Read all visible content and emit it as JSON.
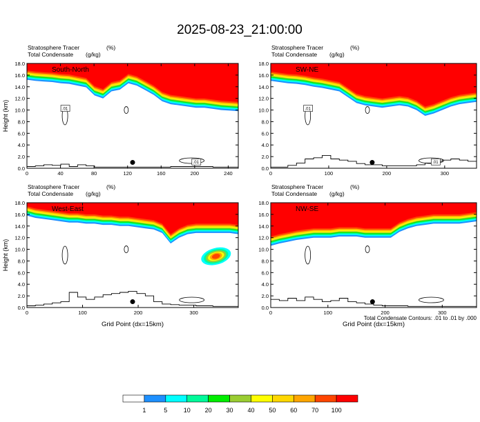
{
  "page": {
    "title": "2025-08-23_21:00:00"
  },
  "panels": [
    {
      "name": "South-North",
      "label_line1": "Stratosphere Tracer",
      "label_unit1": "(%)",
      "label_line2": "Total Condensate",
      "label_unit2": "(g/kg)",
      "ylabel": "Height (km)",
      "xlabel": "",
      "xlim": [
        0,
        252
      ],
      "xticks": [
        0,
        40,
        80,
        120,
        160,
        200,
        240
      ],
      "ylim": [
        0,
        18
      ],
      "yticks": [
        "0.0",
        "2.0",
        "4.0",
        "6.0",
        "8.0",
        "10.0",
        "12.0",
        "14.0",
        "16.0",
        "18.0"
      ],
      "contour_labels": [
        ".01",
        ".01"
      ],
      "tracer_base_km": [
        15.2,
        15.0,
        14.9,
        14.8,
        14.6,
        14.5,
        14.2,
        13.9,
        12.5,
        12.0,
        13.2,
        13.5,
        14.6,
        14.2,
        13.4,
        12.6,
        11.5,
        11.0,
        10.8,
        10.6,
        10.4,
        10.4,
        10.2,
        10.0,
        9.9,
        9.8
      ],
      "terrain_km": [
        0.3,
        0.4,
        0.6,
        0.5,
        0.7,
        0.3,
        0.6,
        0.4,
        0.2,
        0.2,
        0.2,
        0.2,
        0.2,
        0.2,
        0.2,
        0.2,
        0.2,
        0.3,
        0.3,
        0.3,
        0.3,
        0.3,
        0.2,
        0.2,
        0.2,
        0.2
      ],
      "marker_x": 126
    },
    {
      "name": "SW-NE",
      "label_line1": "Stratosphere Tracer",
      "label_unit1": "(%)",
      "label_line2": "Total Condensate",
      "label_unit2": "(g/kg)",
      "ylabel": "",
      "xlabel": "",
      "xlim": [
        0,
        355
      ],
      "xticks": [
        0,
        100,
        200,
        300
      ],
      "ylim": [
        0,
        18
      ],
      "yticks": [
        "0.0",
        "2.0",
        "4.0",
        "6.0",
        "8.0",
        "10.0",
        "12.0",
        "14.0",
        "16.0",
        "18.0"
      ],
      "contour_labels": [
        ".01",
        ".01"
      ],
      "tracer_base_km": [
        15.0,
        14.8,
        14.6,
        14.5,
        14.3,
        14.0,
        13.8,
        13.5,
        13.2,
        12.2,
        11.2,
        10.8,
        10.6,
        10.4,
        10.6,
        10.8,
        10.6,
        10.0,
        9.0,
        9.4,
        10.0,
        10.6,
        11.0,
        11.2,
        11.4
      ],
      "terrain_km": [
        0.2,
        0.2,
        0.5,
        0.9,
        1.6,
        1.8,
        2.2,
        1.6,
        1.4,
        1.2,
        0.8,
        0.6,
        0.6,
        0.4,
        0.4,
        0.4,
        0.4,
        0.6,
        0.9,
        1.2,
        1.4,
        1.6,
        1.4,
        1.2,
        1.0
      ],
      "marker_x": 175
    },
    {
      "name": "West-East",
      "label_line1": "Stratosphere Tracer",
      "label_unit1": "(%)",
      "label_line2": "Total Condensate",
      "label_unit2": "(g/kg)",
      "ylabel": "Height (km)",
      "xlabel": "Grid Point (dx=15km)",
      "xlim": [
        0,
        380
      ],
      "xticks": [
        0,
        100,
        200,
        300
      ],
      "ylim": [
        0,
        18
      ],
      "yticks": [
        "0.0",
        "2.0",
        "4.0",
        "6.0",
        "8.0",
        "10.0",
        "12.0",
        "14.0",
        "16.0",
        "18.0"
      ],
      "contour_labels": [],
      "tracer_base_km": [
        15.8,
        15.4,
        15.2,
        15.0,
        14.8,
        14.6,
        14.6,
        14.4,
        14.4,
        14.2,
        14.2,
        14.0,
        14.0,
        13.8,
        13.6,
        13.4,
        12.8,
        11.0,
        12.0,
        12.6,
        12.8,
        12.8,
        12.8,
        12.8,
        12.8,
        12.6
      ],
      "terrain_km": [
        0.3,
        0.4,
        0.6,
        0.8,
        1.0,
        2.6,
        1.8,
        1.4,
        1.8,
        2.2,
        2.4,
        2.6,
        2.8,
        2.4,
        2.0,
        1.0,
        0.6,
        0.5,
        0.4,
        0.4,
        0.3,
        0.3,
        0.2,
        0.2,
        0.2,
        0.2
      ],
      "marker_x": 190
    },
    {
      "name": "NW-SE",
      "label_line1": "Stratosphere Tracer",
      "label_unit1": "(%)",
      "label_line2": "Total Condensate",
      "label_unit2": "(g/kg)",
      "ylabel": "",
      "xlabel": "Grid Point (dx=15km)",
      "xlim": [
        0,
        360
      ],
      "xticks": [
        0,
        100,
        200,
        300
      ],
      "ylim": [
        0,
        18
      ],
      "yticks": [
        "0.0",
        "2.0",
        "4.0",
        "6.0",
        "8.0",
        "10.0",
        "12.0",
        "14.0",
        "16.0",
        "18.0"
      ],
      "contour_labels": [],
      "tracer_base_km": [
        10.6,
        11.0,
        11.3,
        11.6,
        11.8,
        12.0,
        12.0,
        12.0,
        12.2,
        12.2,
        12.2,
        12.0,
        12.0,
        12.0,
        12.0,
        13.0,
        13.6,
        14.0,
        14.2,
        14.4,
        14.4,
        14.4,
        14.4,
        14.6,
        14.8
      ],
      "terrain_km": [
        1.4,
        1.2,
        1.6,
        1.2,
        1.8,
        1.4,
        1.0,
        1.2,
        1.6,
        1.0,
        0.8,
        0.6,
        0.4,
        0.3,
        0.3,
        0.3,
        0.2,
        0.2,
        0.2,
        0.2,
        0.2,
        0.2,
        0.2,
        0.2,
        0.2
      ],
      "marker_x": 178
    }
  ],
  "footnote": "Total Condensate Contours: .01 to .01 by .000",
  "colorbar": {
    "labels": [
      "1",
      "5",
      "10",
      "20",
      "30",
      "40",
      "50",
      "60",
      "70",
      "100"
    ],
    "colors": [
      "#ffffff",
      "#1e90ff",
      "#00ffff",
      "#00fa9a",
      "#00ee00",
      "#9acd32",
      "#ffff00",
      "#ffd700",
      "#ffa500",
      "#ff4500",
      "#ff0000"
    ]
  },
  "chart_data": [
    {
      "type": "heatmap",
      "title": "South-North",
      "xlabel": "",
      "ylabel": "Height (km)",
      "xlim": [
        0,
        252
      ],
      "ylim": [
        0,
        18
      ],
      "series": [
        {
          "name": "Stratosphere Tracer",
          "values": [
            15.2,
            15.0,
            14.9,
            14.8,
            14.6,
            14.5,
            14.2,
            13.9,
            12.5,
            12.0,
            13.2,
            13.5,
            14.6,
            14.2,
            13.4,
            12.6,
            11.5,
            11.0,
            10.8,
            10.6,
            10.4,
            10.4,
            10.2,
            10.0,
            9.9,
            9.8
          ]
        },
        {
          "name": "Total Condensate",
          "values": [
            0.3,
            0.4,
            0.6,
            0.5,
            0.7,
            0.3,
            0.6,
            0.4,
            0.2,
            0.2,
            0.2,
            0.2,
            0.2,
            0.2,
            0.2,
            0.2,
            0.2,
            0.3,
            0.3,
            0.3,
            0.3,
            0.3,
            0.2,
            0.2,
            0.2,
            0.2
          ]
        }
      ]
    },
    {
      "type": "heatmap",
      "title": "SW-NE",
      "xlabel": "",
      "ylabel": "",
      "xlim": [
        0,
        355
      ],
      "ylim": [
        0,
        18
      ],
      "series": [
        {
          "name": "Stratosphere Tracer",
          "values": [
            15.0,
            14.8,
            14.6,
            14.5,
            14.3,
            14.0,
            13.8,
            13.5,
            13.2,
            12.2,
            11.2,
            10.8,
            10.6,
            10.4,
            10.6,
            10.8,
            10.6,
            10.0,
            9.0,
            9.4,
            10.0,
            10.6,
            11.0,
            11.2,
            11.4
          ]
        },
        {
          "name": "Total Condensate",
          "values": [
            0.2,
            0.2,
            0.5,
            0.9,
            1.6,
            1.8,
            2.2,
            1.6,
            1.4,
            1.2,
            0.8,
            0.6,
            0.6,
            0.4,
            0.4,
            0.4,
            0.4,
            0.6,
            0.9,
            1.2,
            1.4,
            1.6,
            1.4,
            1.2,
            1.0
          ]
        }
      ]
    },
    {
      "type": "heatmap",
      "title": "West-East",
      "xlabel": "Grid Point (dx=15km)",
      "ylabel": "Height (km)",
      "xlim": [
        0,
        380
      ],
      "ylim": [
        0,
        18
      ],
      "series": [
        {
          "name": "Stratosphere Tracer",
          "values": [
            15.8,
            15.4,
            15.2,
            15.0,
            14.8,
            14.6,
            14.6,
            14.4,
            14.4,
            14.2,
            14.2,
            14.0,
            14.0,
            13.8,
            13.6,
            13.4,
            12.8,
            11.0,
            12.0,
            12.6,
            12.8,
            12.8,
            12.8,
            12.8,
            12.8,
            12.6
          ]
        },
        {
          "name": "Total Condensate",
          "values": [
            0.3,
            0.4,
            0.6,
            0.8,
            1.0,
            2.6,
            1.8,
            1.4,
            1.8,
            2.2,
            2.4,
            2.6,
            2.8,
            2.4,
            2.0,
            1.0,
            0.6,
            0.5,
            0.4,
            0.4,
            0.3,
            0.3,
            0.2,
            0.2,
            0.2,
            0.2
          ]
        }
      ]
    },
    {
      "type": "heatmap",
      "title": "NW-SE",
      "xlabel": "Grid Point (dx=15km)",
      "ylabel": "",
      "xlim": [
        0,
        360
      ],
      "ylim": [
        0,
        18
      ],
      "series": [
        {
          "name": "Stratosphere Tracer",
          "values": [
            10.6,
            11.0,
            11.3,
            11.6,
            11.8,
            12.0,
            12.0,
            12.0,
            12.2,
            12.2,
            12.2,
            12.0,
            12.0,
            12.0,
            12.0,
            13.0,
            13.6,
            14.0,
            14.2,
            14.4,
            14.4,
            14.4,
            14.4,
            14.6,
            14.8
          ]
        },
        {
          "name": "Total Condensate",
          "values": [
            1.4,
            1.2,
            1.6,
            1.2,
            1.8,
            1.4,
            1.0,
            1.2,
            1.6,
            1.0,
            0.8,
            0.6,
            0.4,
            0.3,
            0.3,
            0.3,
            0.2,
            0.2,
            0.2,
            0.2,
            0.2,
            0.2,
            0.2,
            0.2,
            0.2
          ]
        }
      ]
    }
  ]
}
